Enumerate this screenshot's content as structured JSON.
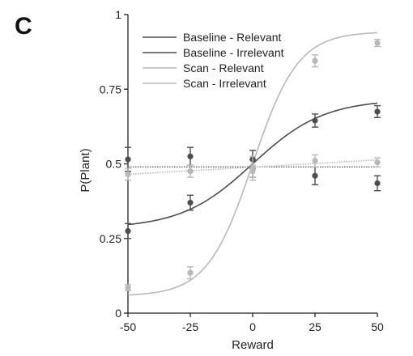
{
  "panel_label": "C",
  "colors": {
    "dark": "#4d4d4d",
    "light": "#b8b8b8",
    "axis": "#222222",
    "reference": "#222222"
  },
  "chart_data": {
    "type": "scatter",
    "xlabel": "Reward",
    "ylabel": "P(Plant)",
    "xlim": [
      -50,
      50
    ],
    "ylim": [
      0,
      1
    ],
    "xticks": [
      -50,
      -25,
      0,
      25,
      50
    ],
    "xtick_labels": [
      "-50",
      "-25",
      "0",
      "25",
      "50"
    ],
    "yticks": [
      0,
      0.25,
      0.5,
      0.75,
      1
    ],
    "ytick_labels": [
      "0",
      "0.25",
      "0.5",
      "0.75",
      "1"
    ],
    "grid": false,
    "legend_position": "top-left",
    "reference_line_y": 0.49,
    "x": [
      -50,
      -25,
      0,
      25,
      50
    ],
    "series": [
      {
        "name": "Baseline - Relevant",
        "color": "#4d4d4d",
        "values": [
          0.275,
          0.37,
          0.485,
          0.645,
          0.675
        ],
        "errors": [
          0.025,
          0.025,
          0.03,
          0.022,
          0.02
        ],
        "fit": [
          0.3,
          0.37,
          0.495,
          0.63,
          0.7
        ]
      },
      {
        "name": "Baseline - Irrelevant",
        "color": "#4d4d4d",
        "values": [
          0.515,
          0.525,
          0.515,
          0.46,
          0.435
        ],
        "errors": [
          0.04,
          0.03,
          0.03,
          0.03,
          0.025
        ],
        "fit": [
          0.49,
          0.49,
          0.49,
          0.49,
          0.49
        ]
      },
      {
        "name": "Scan - Relevant",
        "color": "#b8b8b8",
        "values": [
          0.085,
          0.135,
          0.485,
          0.845,
          0.905
        ],
        "errors": [
          0.01,
          0.02,
          0.04,
          0.02,
          0.012
        ],
        "fit": [
          0.09,
          0.13,
          0.5,
          0.86,
          0.91
        ]
      },
      {
        "name": "Scan - Irrelevant",
        "color": "#b8b8b8",
        "values": [
          0.465,
          0.475,
          0.475,
          0.51,
          0.505
        ],
        "errors": [
          0.02,
          0.02,
          0.02,
          0.02,
          0.015
        ],
        "fit": [
          0.465,
          0.477,
          0.489,
          0.501,
          0.513
        ]
      }
    ]
  }
}
